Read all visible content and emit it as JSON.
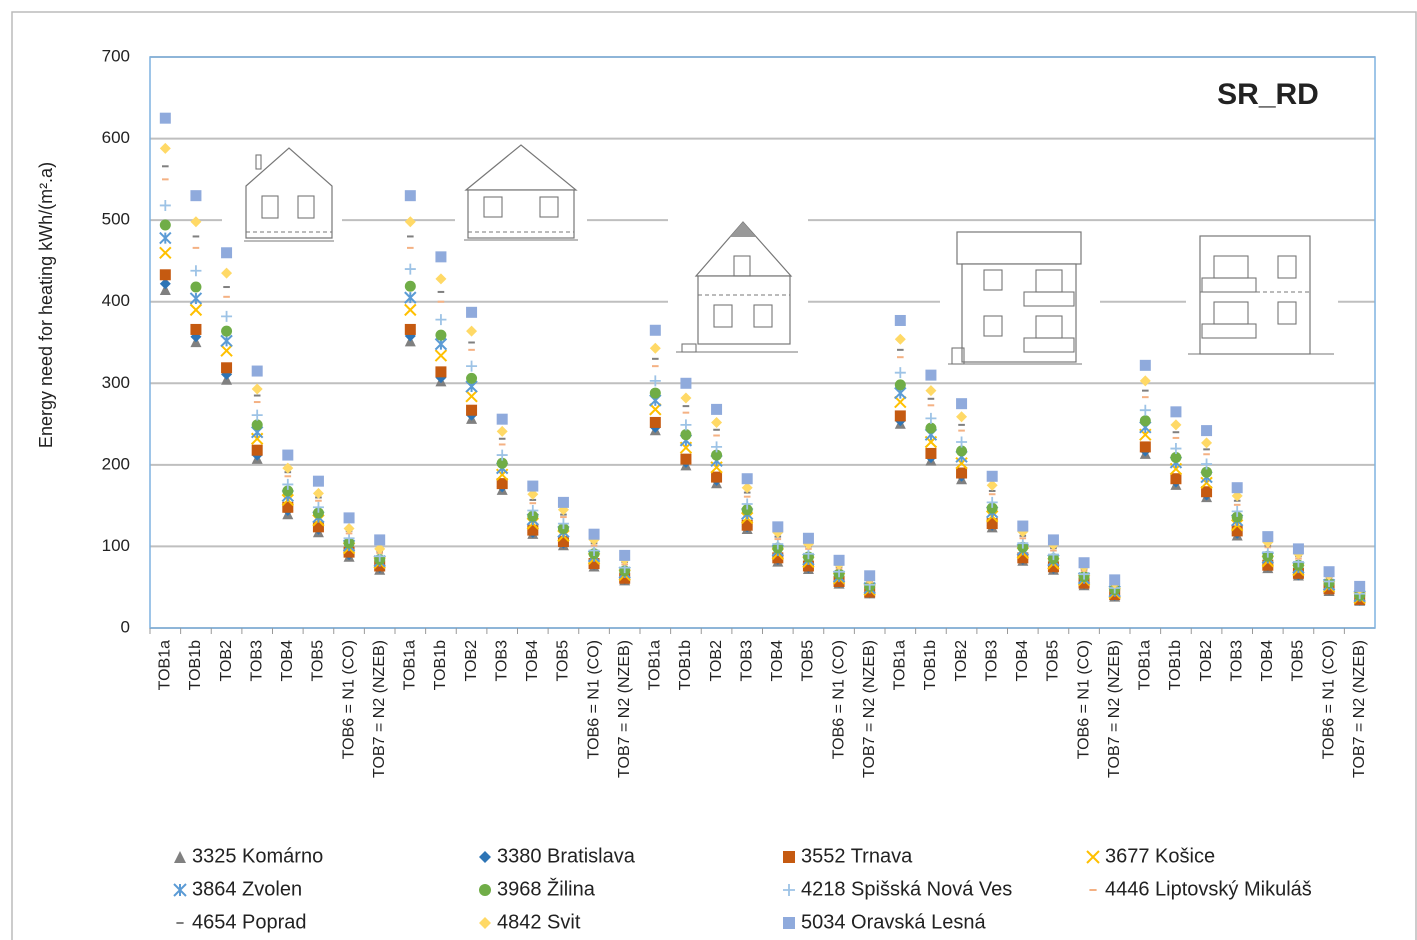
{
  "chart_data": {
    "type": "scatter",
    "title": "SR_RD",
    "y_label": "Energy need for heating  kWh/(m².a)",
    "ylim": [
      0,
      700
    ],
    "yticks": [
      0,
      100,
      200,
      300,
      400,
      500,
      600,
      700
    ],
    "grid": true,
    "categories": [
      "TOB1a",
      "TOB1b",
      "TOB2",
      "TOB3",
      "TOB4",
      "TOB5",
      "TOB6 = N1 (CO)",
      "TOB7 = N2 (NZEB)",
      "TOB1a",
      "TOB1b",
      "TOB2",
      "TOB3",
      "TOB4",
      "TOB5",
      "TOB6 = N1 (CO)",
      "TOB7 = N2 (NZEB)",
      "TOB1a",
      "TOB1b",
      "TOB2",
      "TOB3",
      "TOB4",
      "TOB5",
      "TOB6 = N1 (CO)",
      "TOB7 = N2 (NZEB)",
      "TOB1a",
      "TOB1b",
      "TOB2",
      "TOB3",
      "TOB4",
      "TOB5",
      "TOB6 = N1 (CO)",
      "TOB7 = N2 (NZEB)",
      "TOB1a",
      "TOB1b",
      "TOB2",
      "TOB3",
      "TOB4",
      "TOB5",
      "TOB6 = N1 (CO)",
      "TOB7 = N2 (NZEB)"
    ],
    "series": [
      {
        "name": "3325 Komárno",
        "color": "#808080",
        "marker": "triangle",
        "values": [
          415,
          351,
          305,
          208,
          140,
          118,
          88,
          72,
          352,
          303,
          257,
          170,
          116,
          102,
          76,
          59,
          243,
          200,
          178,
          122,
          82,
          73,
          55,
          43,
          251,
          206,
          183,
          124,
          83,
          72,
          53,
          39,
          214,
          176,
          161,
          114,
          74,
          65,
          46,
          34
        ]
      },
      {
        "name": "3380 Bratislava",
        "color": "#2e75b6",
        "marker": "diamond",
        "values": [
          422,
          357,
          311,
          212,
          144,
          121,
          90,
          74,
          358,
          307,
          261,
          173,
          117,
          104,
          78,
          60,
          246,
          203,
          181,
          124,
          84,
          74,
          56,
          43,
          254,
          209,
          186,
          126,
          84,
          73,
          54,
          40,
          217,
          179,
          163,
          116,
          76,
          65,
          47,
          34
        ]
      },
      {
        "name": "3552 Trnava",
        "color": "#c55a11",
        "marker": "square",
        "values": [
          433,
          366,
          319,
          218,
          148,
          124,
          93,
          76,
          366,
          314,
          267,
          177,
          120,
          106,
          79,
          61,
          252,
          207,
          185,
          126,
          86,
          76,
          57,
          44,
          260,
          214,
          190,
          128,
          86,
          75,
          55,
          41,
          222,
          183,
          167,
          119,
          77,
          67,
          48,
          35
        ]
      },
      {
        "name": "3677 Košice",
        "color": "#ffc000",
        "marker": "x",
        "values": [
          460,
          390,
          340,
          232,
          157,
          132,
          98,
          80,
          390,
          334,
          284,
          188,
          128,
          113,
          85,
          65,
          268,
          221,
          197,
          135,
          91,
          81,
          61,
          47,
          277,
          228,
          202,
          137,
          92,
          79,
          59,
          43,
          237,
          195,
          178,
          126,
          82,
          71,
          51,
          37
        ]
      },
      {
        "name": "3864 Zvolen",
        "color": "#5b9bd5",
        "marker": "star",
        "values": [
          478,
          404,
          352,
          240,
          162,
          136,
          101,
          82,
          405,
          348,
          296,
          196,
          133,
          118,
          88,
          68,
          279,
          230,
          205,
          140,
          95,
          84,
          63,
          49,
          288,
          237,
          210,
          142,
          96,
          83,
          61,
          45,
          246,
          203,
          185,
          132,
          86,
          74,
          53,
          39
        ]
      },
      {
        "name": "3968 Žilina",
        "color": "#70ad47",
        "marker": "circle",
        "values": [
          494,
          418,
          364,
          249,
          168,
          141,
          104,
          84,
          419,
          359,
          306,
          202,
          137,
          122,
          91,
          70,
          288,
          237,
          212,
          145,
          98,
          87,
          66,
          51,
          298,
          245,
          217,
          147,
          99,
          85,
          63,
          47,
          254,
          209,
          191,
          136,
          88,
          77,
          55,
          40
        ]
      },
      {
        "name": "4218 Spišská Nová Ves",
        "color": "#9dc3e6",
        "marker": "plus",
        "values": [
          518,
          438,
          382,
          261,
          176,
          148,
          110,
          88,
          440,
          378,
          321,
          212,
          144,
          128,
          95,
          74,
          303,
          249,
          222,
          152,
          103,
          91,
          69,
          53,
          313,
          257,
          228,
          154,
          104,
          90,
          66,
          49,
          267,
          220,
          201,
          143,
          93,
          81,
          57,
          42
        ]
      },
      {
        "name": "4446 Liptovský Mikuláš",
        "color": "#f4b183",
        "marker": "dash",
        "values": [
          550,
          466,
          406,
          277,
          186,
          156,
          116,
          92,
          466,
          400,
          341,
          225,
          153,
          136,
          101,
          78,
          321,
          264,
          236,
          161,
          109,
          97,
          73,
          56,
          332,
          273,
          242,
          164,
          110,
          95,
          70,
          52,
          283,
          233,
          213,
          151,
          99,
          85,
          61,
          45
        ]
      },
      {
        "name": "4654 Poprad",
        "color": "#7f7f7f",
        "marker": "dash",
        "values": [
          566,
          480,
          418,
          285,
          191,
          160,
          119,
          94,
          480,
          412,
          350,
          232,
          157,
          139,
          104,
          81,
          330,
          272,
          243,
          166,
          112,
          100,
          75,
          58,
          341,
          281,
          249,
          168,
          113,
          98,
          72,
          53,
          291,
          240,
          219,
          156,
          101,
          88,
          62,
          46
        ]
      },
      {
        "name": "4842 Svit",
        "color": "#ffd966",
        "marker": "diamond",
        "values": [
          588,
          498,
          435,
          293,
          196,
          165,
          122,
          97,
          498,
          428,
          364,
          241,
          164,
          145,
          108,
          84,
          343,
          282,
          252,
          172,
          117,
          103,
          78,
          60,
          354,
          291,
          259,
          175,
          118,
          102,
          75,
          55,
          303,
          249,
          227,
          162,
          105,
          91,
          65,
          48
        ]
      },
      {
        "name": "5034 Oravská Lesná",
        "color": "#8faadc",
        "marker": "square",
        "values": [
          625,
          530,
          460,
          315,
          212,
          180,
          135,
          108,
          530,
          455,
          387,
          256,
          174,
          154,
          115,
          89,
          365,
          300,
          268,
          183,
          124,
          110,
          83,
          64,
          377,
          310,
          275,
          186,
          125,
          108,
          80,
          59,
          322,
          265,
          242,
          172,
          112,
          97,
          69,
          51
        ]
      }
    ]
  }
}
